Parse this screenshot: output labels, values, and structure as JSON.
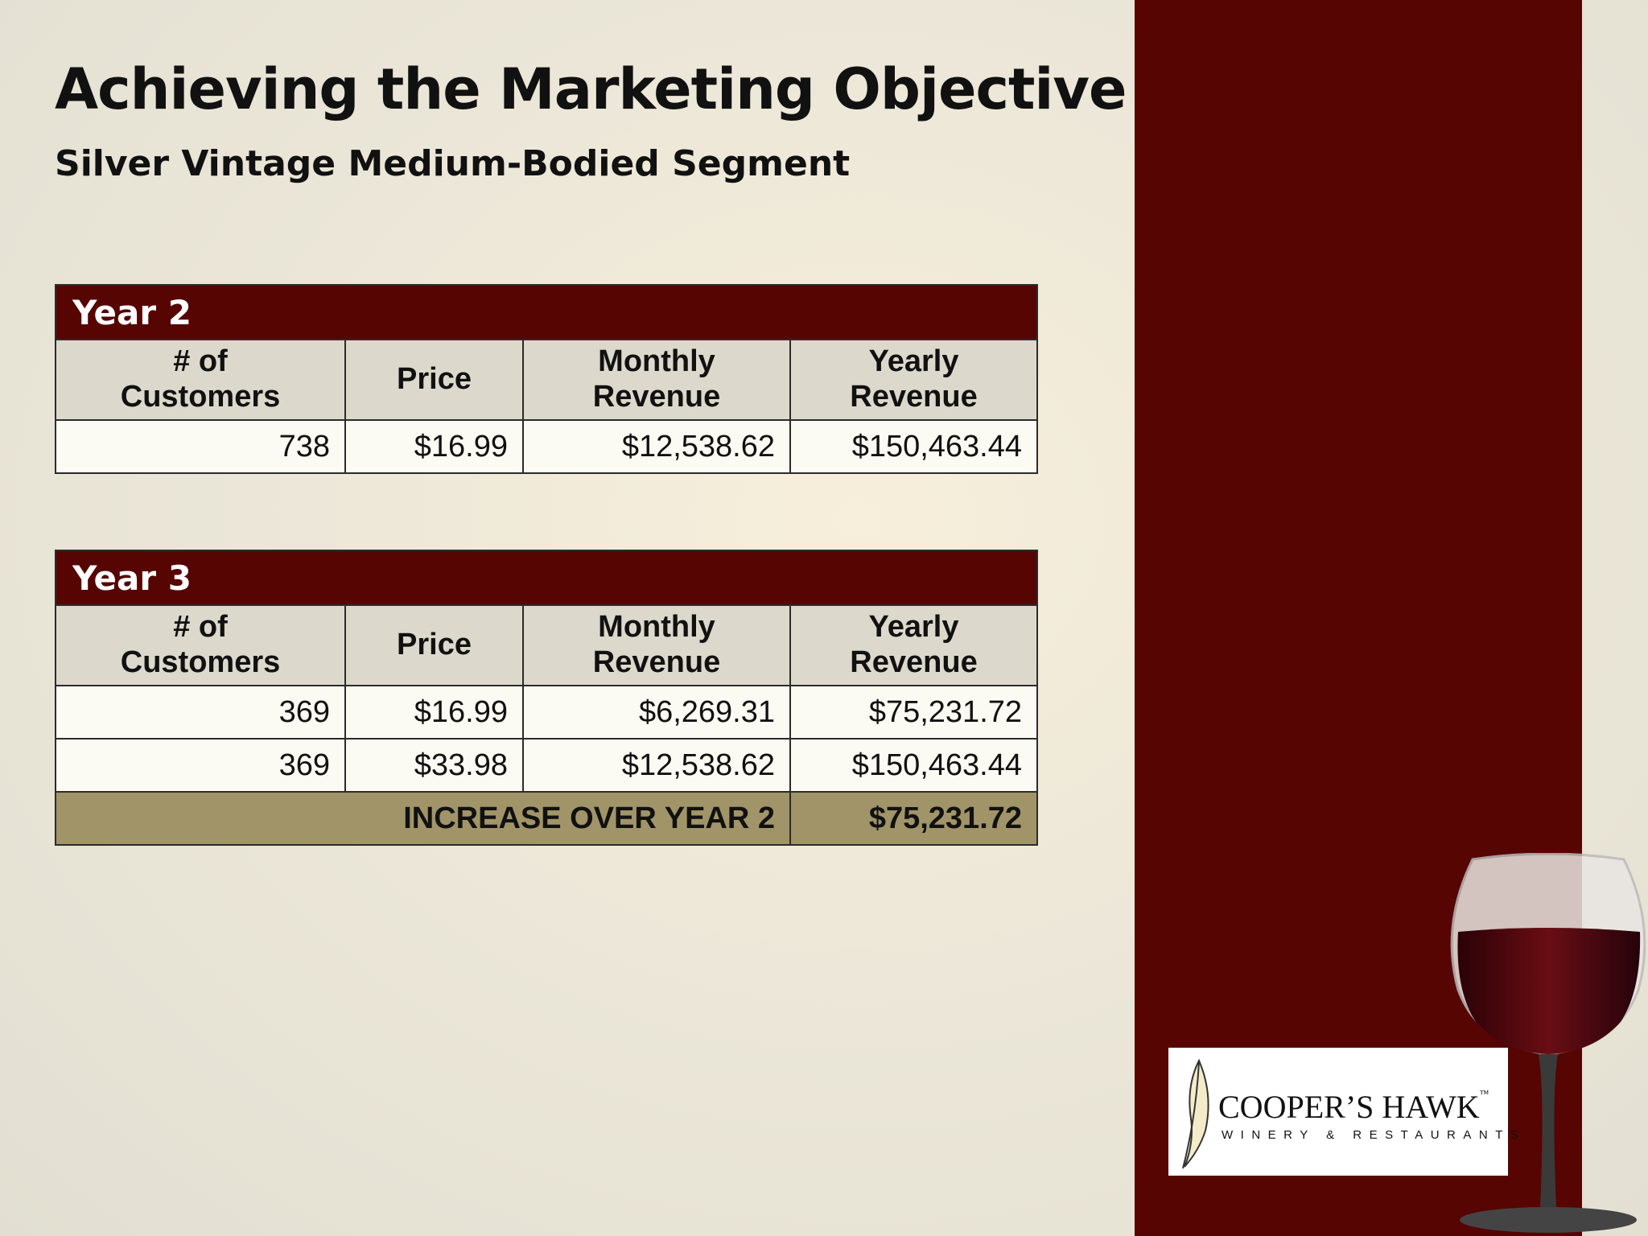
{
  "header": {
    "title": "Achieving the Marketing Objective",
    "subtitle": "Silver Vintage Medium-Bodied Segment"
  },
  "tables": [
    {
      "caption": "Year 2",
      "columns": [
        "# of Customers",
        "Price",
        "Monthly Revenue",
        "Yearly Revenue"
      ],
      "rows": [
        [
          "738",
          "$16.99",
          "$12,538.62",
          "$150,463.44"
        ]
      ]
    },
    {
      "caption": "Year 3",
      "columns": [
        "# of Customers",
        "Price",
        "Monthly Revenue",
        "Yearly Revenue"
      ],
      "rows": [
        [
          "369",
          "$16.99",
          "$6,269.31",
          "$75,231.72"
        ],
        [
          "369",
          "$33.98",
          "$12,538.62",
          "$150,463.44"
        ]
      ],
      "footer": [
        "INCREASE OVER YEAR 2",
        "$75,231.72"
      ]
    }
  ],
  "logo": {
    "name": "COOPER’S HAWK",
    "trademark": "™",
    "tagline": "WINERY & RESTAURANTS"
  }
}
